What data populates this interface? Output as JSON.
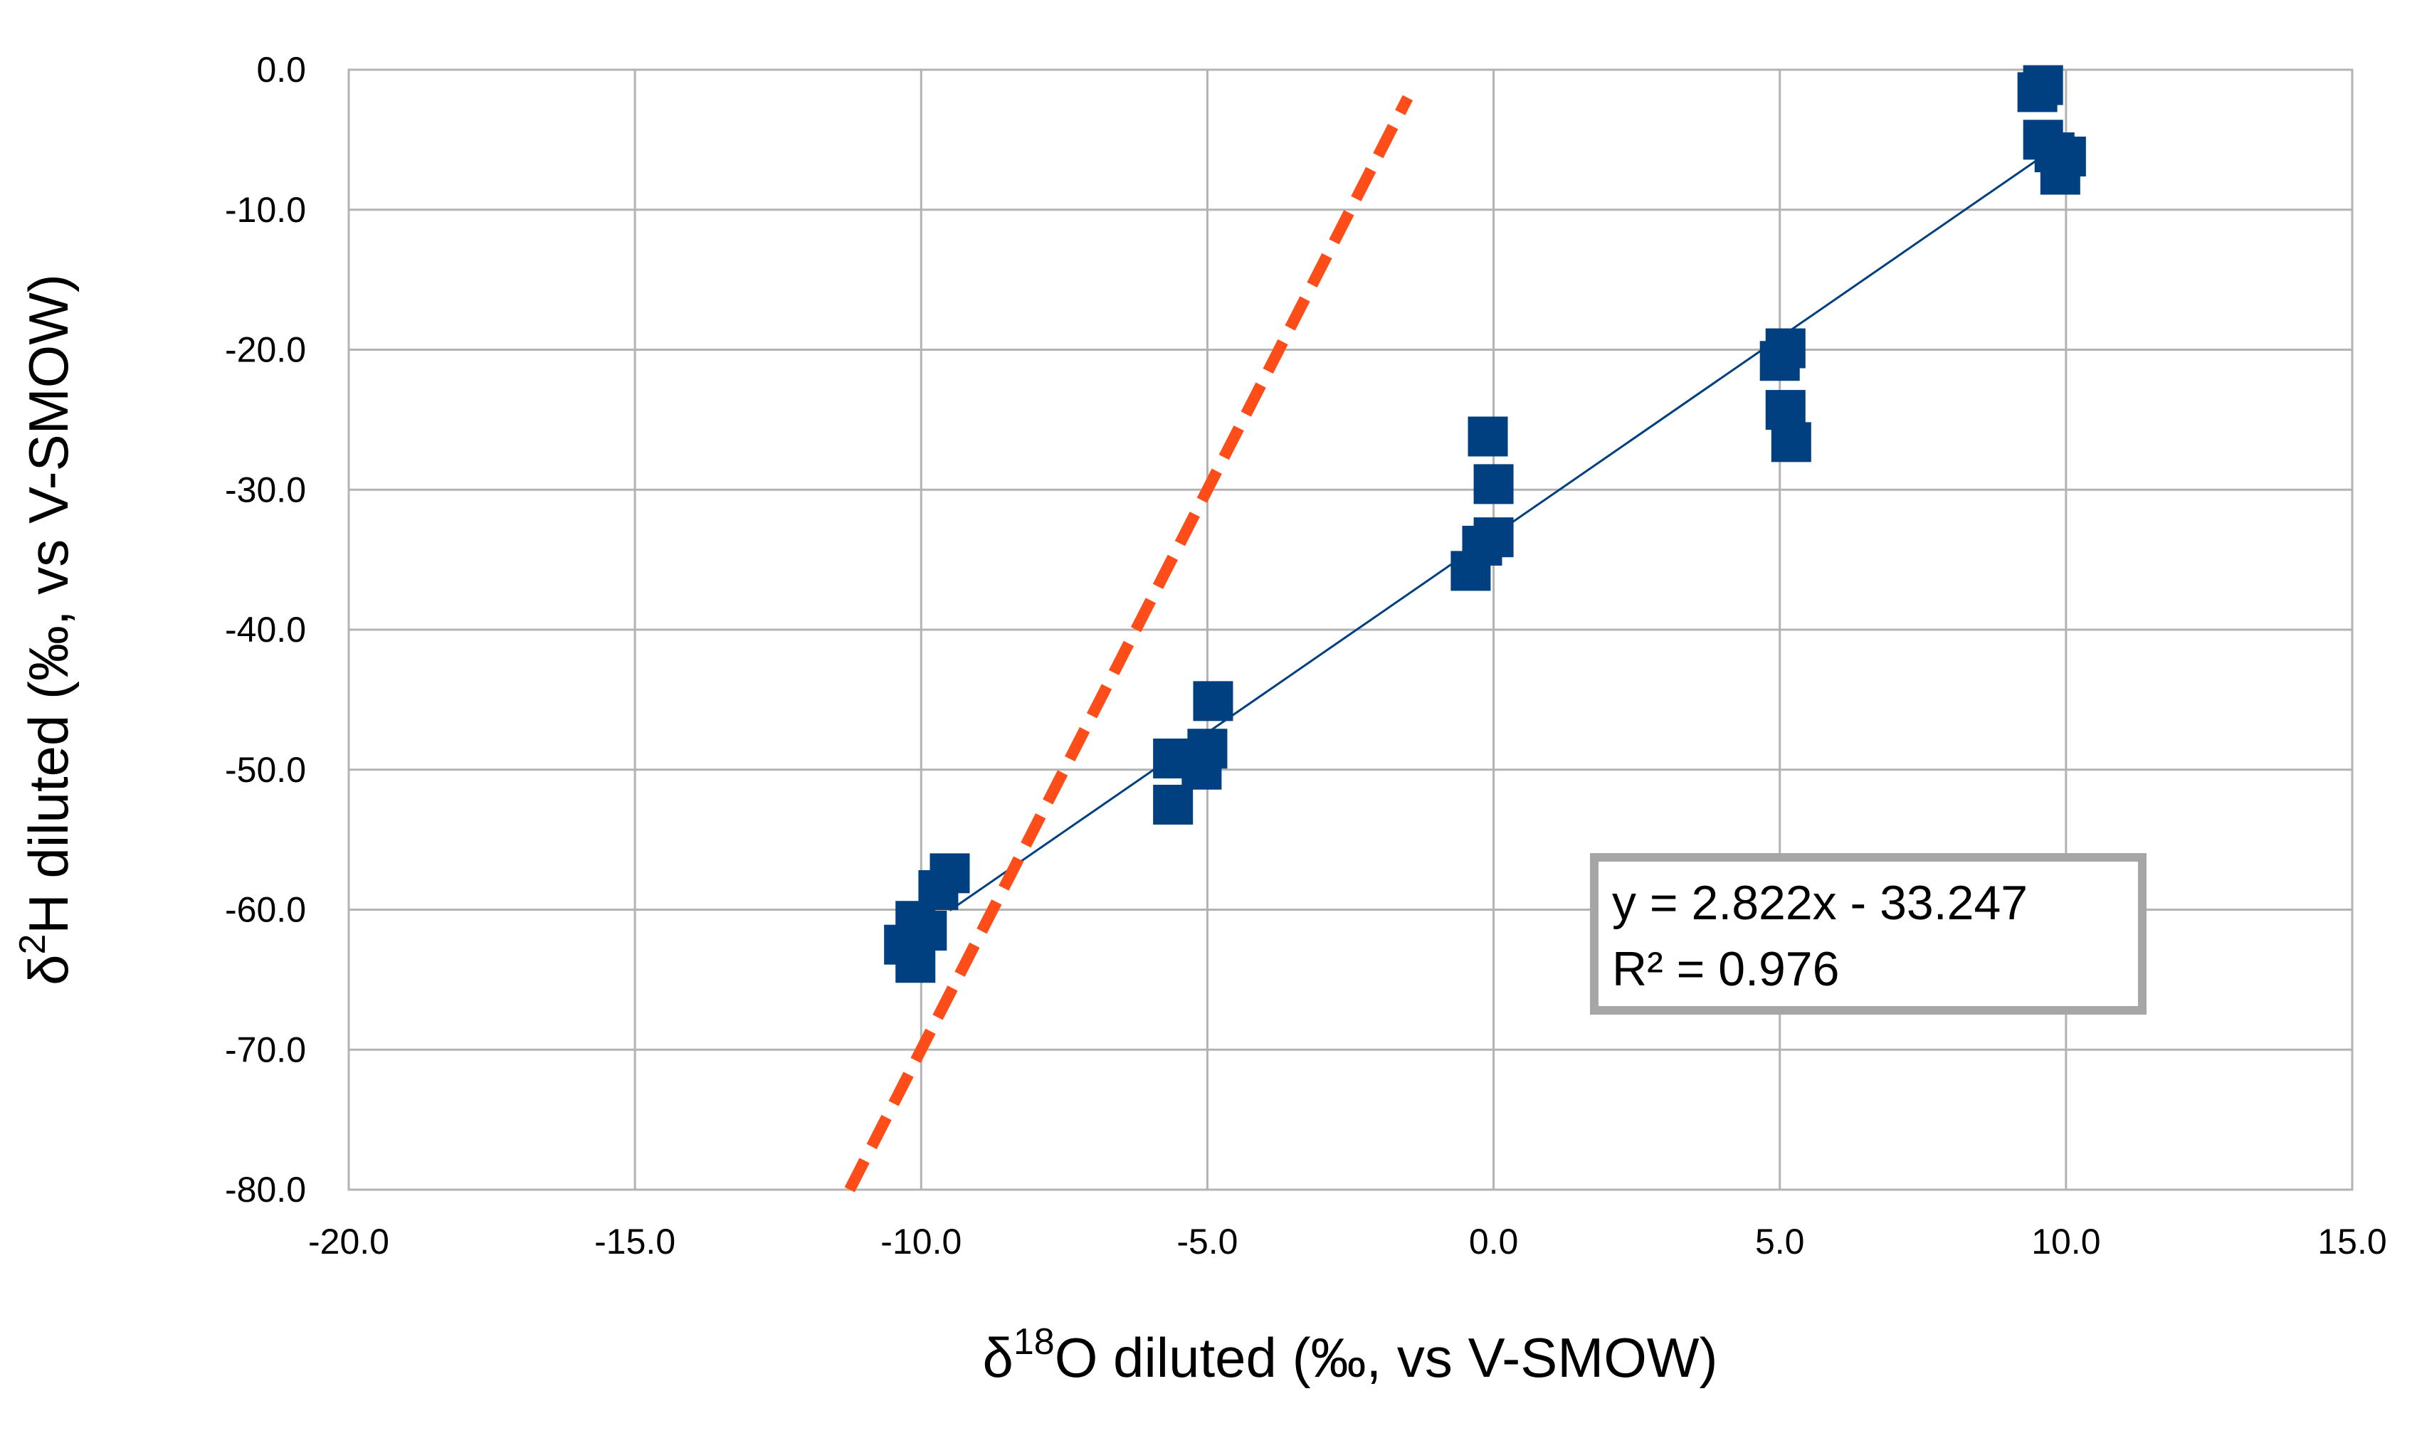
{
  "chart_data": {
    "type": "scatter",
    "xlabel": {
      "delta": "δ",
      "sup": "18",
      "rest": "O diluted (‰, vs V-SMOW)"
    },
    "ylabel": {
      "delta": "δ",
      "sup": "2",
      "rest": "H diluted (‰, vs V-SMOW)"
    },
    "xlim": [
      -20,
      15
    ],
    "ylim": [
      -80,
      0
    ],
    "xticks": [
      -20,
      -15,
      -10,
      -5,
      0,
      5,
      10,
      15
    ],
    "yticks": [
      0,
      -10,
      -20,
      -30,
      -40,
      -50,
      -60,
      -70,
      -80
    ],
    "xtick_labels": [
      "-20.0",
      "-15.0",
      "-10.0",
      "-5.0",
      "0.0",
      "5.0",
      "10.0",
      "15.0"
    ],
    "ytick_labels": [
      "0.0",
      "-10.0",
      "-20.0",
      "-30.0",
      "-40.0",
      "-50.0",
      "-60.0",
      "-70.0",
      "-80.0"
    ],
    "grid": true,
    "series": [
      {
        "name": "samples",
        "color": "#004080",
        "marker": "square",
        "points": [
          [
            -10.3,
            -62.5
          ],
          [
            -10.1,
            -60.8
          ],
          [
            -9.9,
            -61.5
          ],
          [
            -10.1,
            -63.8
          ],
          [
            -9.7,
            -58.6
          ],
          [
            -9.5,
            -57.4
          ],
          [
            -5.6,
            -49.2
          ],
          [
            -5.6,
            -52.5
          ],
          [
            -5.1,
            -50.0
          ],
          [
            -5.0,
            -48.5
          ],
          [
            -4.9,
            -45.1
          ],
          [
            -0.1,
            -26.2
          ],
          [
            0.0,
            -29.6
          ],
          [
            -0.4,
            -35.8
          ],
          [
            -0.2,
            -34.0
          ],
          [
            0.0,
            -33.4
          ],
          [
            5.0,
            -20.8
          ],
          [
            5.1,
            -19.9
          ],
          [
            5.1,
            -24.3
          ],
          [
            5.2,
            -26.6
          ],
          [
            9.5,
            -1.6
          ],
          [
            9.6,
            -1.1
          ],
          [
            9.6,
            -5.0
          ],
          [
            9.8,
            -5.9
          ],
          [
            9.9,
            -7.5
          ],
          [
            10.0,
            -6.2
          ]
        ]
      }
    ],
    "trendline": {
      "color": "#004080",
      "slope": 2.822,
      "intercept": -33.247,
      "x_range": [
        -9.5,
        9.8
      ]
    },
    "reference_line": {
      "color": "#ff4d1a",
      "style": "dashed",
      "slope": 8,
      "intercept": 10,
      "x_range": [
        -11.25,
        -1.5
      ]
    },
    "annotation": {
      "line1": "y = 2.822x - 33.247",
      "line2": "R² = 0.976",
      "border_color": "#a6a6a6"
    }
  }
}
